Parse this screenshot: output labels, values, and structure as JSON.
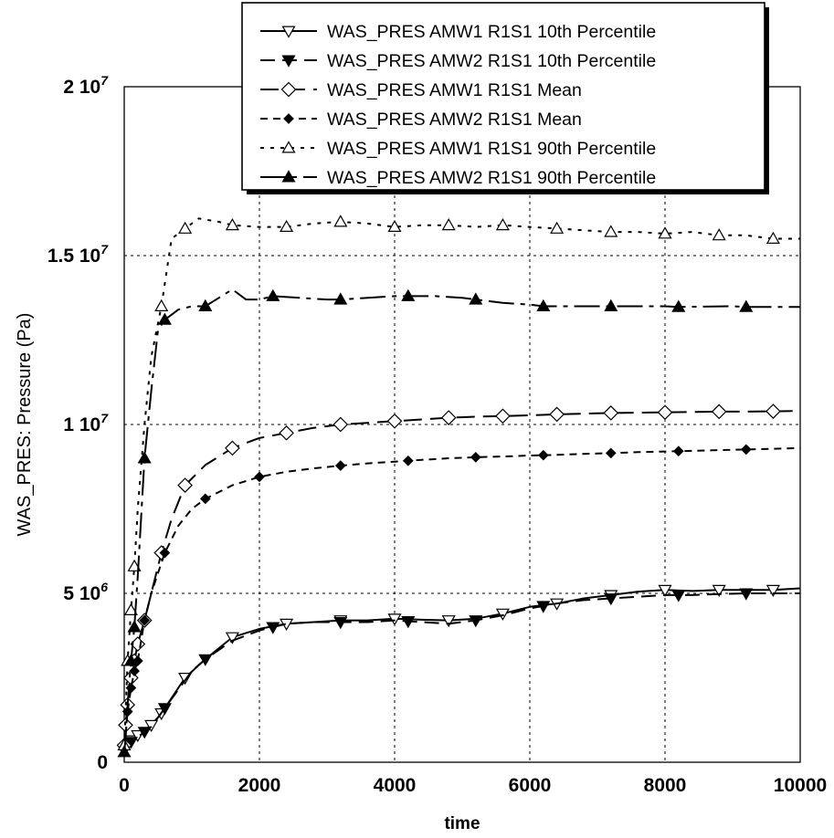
{
  "chart_data": {
    "type": "line",
    "xlabel": "time",
    "ylabel": "WAS_PRES: Pressure (Pa)",
    "xlim": [
      0,
      10000
    ],
    "ylim": [
      0,
      20000000
    ],
    "grid": true,
    "legend_position": "top-right",
    "x_ticks": [
      {
        "value": 0,
        "label": "0"
      },
      {
        "value": 2000,
        "label": "2000"
      },
      {
        "value": 4000,
        "label": "4000"
      },
      {
        "value": 6000,
        "label": "6000"
      },
      {
        "value": 8000,
        "label": "8000"
      },
      {
        "value": 10000,
        "label": "10000"
      }
    ],
    "y_ticks": [
      {
        "value": 0,
        "mantissa": "0",
        "exponent": ""
      },
      {
        "value": 5000000,
        "mantissa": "5 10",
        "exponent": "6"
      },
      {
        "value": 10000000,
        "mantissa": "1 10",
        "exponent": "7"
      },
      {
        "value": 15000000,
        "mantissa": "1.5 10",
        "exponent": "7"
      },
      {
        "value": 20000000,
        "mantissa": "2 10",
        "exponent": "7"
      }
    ],
    "series": [
      {
        "name": "WAS_PRES AMW1 R1S1 10th Percentile",
        "dash": "none",
        "marker": "triangle-down-open",
        "x": [
          0,
          20,
          50,
          100,
          200,
          300,
          400,
          550,
          700,
          900,
          1200,
          1600,
          2000,
          2400,
          2800,
          3200,
          3600,
          4000,
          4400,
          4800,
          5200,
          5600,
          6000,
          6400,
          6800,
          7200,
          7600,
          8000,
          8400,
          8800,
          9200,
          9600,
          10000
        ],
        "y": [
          400000,
          450000,
          550000,
          650000,
          800000,
          950000,
          1100000,
          1450000,
          1900000,
          2500000,
          3050000,
          3700000,
          3950000,
          4100000,
          4150000,
          4200000,
          4200000,
          4250000,
          4220000,
          4200000,
          4250000,
          4400000,
          4600000,
          4700000,
          4850000,
          4950000,
          5050000,
          5100000,
          5070000,
          5100000,
          5100000,
          5100000,
          5150000
        ],
        "marker_x": [
          0,
          100,
          200,
          400,
          550,
          900,
          1600,
          2400,
          3200,
          4000,
          4800,
          5600,
          6400,
          7200,
          8000,
          8800,
          9600
        ]
      },
      {
        "name": "WAS_PRES AMW2 R1S1 10th Percentile",
        "dash": "16,8",
        "marker": "triangle-down-filled",
        "x": [
          0,
          20,
          50,
          100,
          200,
          300,
          400,
          600,
          800,
          1000,
          1200,
          1600,
          2000,
          2400,
          2800,
          3200,
          3600,
          4000,
          4400,
          4800,
          5200,
          5600,
          6000,
          6400,
          6800,
          7200,
          7600,
          8000,
          8400,
          8800,
          9200,
          9600,
          10000
        ],
        "y": [
          350000,
          400000,
          500000,
          600000,
          750000,
          900000,
          1050000,
          1600000,
          2150000,
          2700000,
          3050000,
          3600000,
          3900000,
          4100000,
          4150000,
          4150000,
          4150000,
          4200000,
          4150000,
          4100000,
          4200000,
          4350000,
          4550000,
          4700000,
          4800000,
          4850000,
          4900000,
          4950000,
          4950000,
          4980000,
          5000000,
          5000000,
          5000000
        ],
        "marker_x": [
          0,
          100,
          300,
          600,
          1200,
          2200,
          3200,
          4200,
          5200,
          6200,
          7200,
          8200,
          9200
        ]
      },
      {
        "name": "WAS_PRES AMW1 R1S1 Mean",
        "dash": "20,9",
        "marker": "diamond-open",
        "x": [
          0,
          20,
          50,
          100,
          150,
          200,
          300,
          400,
          550,
          700,
          900,
          1200,
          1600,
          2000,
          2400,
          2800,
          3200,
          3600,
          4000,
          4400,
          4800,
          5200,
          5600,
          6000,
          6400,
          6800,
          7200,
          7600,
          8000,
          8400,
          8800,
          9200,
          9600,
          10000
        ],
        "y": [
          500000,
          1100000,
          1700000,
          2500000,
          3000000,
          3500000,
          4200000,
          5000000,
          6200000,
          7200000,
          8200000,
          8800000,
          9300000,
          9600000,
          9750000,
          9900000,
          10000000,
          10050000,
          10100000,
          10150000,
          10200000,
          10230000,
          10250000,
          10270000,
          10300000,
          10320000,
          10340000,
          10350000,
          10360000,
          10370000,
          10380000,
          10380000,
          10390000,
          10400000
        ],
        "marker_x": [
          0,
          20,
          50,
          100,
          150,
          200,
          300,
          550,
          900,
          1600,
          2400,
          3200,
          4000,
          4800,
          5600,
          6400,
          7200,
          8000,
          8800,
          9600
        ]
      },
      {
        "name": "WAS_PRES AMW2 R1S1 Mean",
        "dash": "8,6",
        "marker": "diamond-filled",
        "x": [
          0,
          20,
          50,
          100,
          150,
          200,
          300,
          400,
          600,
          800,
          1000,
          1200,
          1600,
          2000,
          2400,
          2800,
          3200,
          3600,
          4000,
          4400,
          4800,
          5200,
          5600,
          6000,
          6400,
          6800,
          7200,
          7600,
          8000,
          8400,
          8800,
          9200,
          9600,
          10000
        ],
        "y": [
          400000,
          900000,
          1500000,
          2200000,
          2700000,
          3000000,
          4200000,
          5000000,
          6200000,
          7000000,
          7500000,
          7800000,
          8200000,
          8450000,
          8600000,
          8700000,
          8780000,
          8850000,
          8900000,
          8950000,
          9000000,
          9030000,
          9050000,
          9080000,
          9100000,
          9130000,
          9150000,
          9180000,
          9200000,
          9220000,
          9240000,
          9260000,
          9280000,
          9300000
        ],
        "marker_x": [
          0,
          50,
          100,
          150,
          200,
          300,
          600,
          1200,
          2000,
          3200,
          4200,
          5200,
          6200,
          7200,
          8200,
          9200
        ]
      },
      {
        "name": "WAS_PRES AMW1 R1S1 90th Percentile",
        "dash": "4,7",
        "marker": "triangle-up-open",
        "x": [
          0,
          20,
          50,
          100,
          150,
          200,
          300,
          400,
          550,
          700,
          900,
          1100,
          1400,
          1600,
          2000,
          2400,
          2800,
          3200,
          3600,
          4000,
          4400,
          4800,
          5200,
          5600,
          6000,
          6400,
          6800,
          7200,
          7600,
          8000,
          8400,
          8800,
          9200,
          9600,
          10000
        ],
        "y": [
          500000,
          1500000,
          3000000,
          4500000,
          5800000,
          7500000,
          10000000,
          12000000,
          13500000,
          15500000,
          15800000,
          16100000,
          16000000,
          15900000,
          15850000,
          15850000,
          15950000,
          16000000,
          15950000,
          15850000,
          15900000,
          15900000,
          15850000,
          15900000,
          15850000,
          15800000,
          15750000,
          15700000,
          15700000,
          15650000,
          15700000,
          15600000,
          15600000,
          15500000,
          15500000
        ],
        "marker_x": [
          0,
          50,
          100,
          150,
          550,
          900,
          1600,
          2400,
          3200,
          4000,
          4800,
          5600,
          6400,
          7200,
          8000,
          8800,
          9600
        ]
      },
      {
        "name": "WAS_PRES AMW2 R1S1 90th Percentile",
        "dash": "28,7,5,7",
        "marker": "triangle-up-filled",
        "x": [
          0,
          20,
          50,
          100,
          150,
          200,
          300,
          400,
          500,
          600,
          800,
          1000,
          1200,
          1600,
          1800,
          2000,
          2200,
          2600,
          3000,
          3200,
          3600,
          4000,
          4200,
          4600,
          5000,
          5200,
          5600,
          6000,
          6200,
          6800,
          7200,
          8000,
          8200,
          9000,
          9200,
          10000
        ],
        "y": [
          300000,
          700000,
          1700000,
          3000000,
          4000000,
          5500000,
          9000000,
          11000000,
          12800000,
          13100000,
          13400000,
          13500000,
          13500000,
          14000000,
          13700000,
          13700000,
          13800000,
          13750000,
          13700000,
          13700000,
          13750000,
          13800000,
          13800000,
          13800000,
          13750000,
          13700000,
          13600000,
          13550000,
          13500000,
          13500000,
          13500000,
          13500000,
          13480000,
          13500000,
          13480000,
          13480000
        ],
        "marker_x": [
          0,
          100,
          150,
          300,
          600,
          1200,
          2200,
          3200,
          4200,
          5200,
          6200,
          7200,
          8200,
          9200
        ]
      }
    ]
  }
}
